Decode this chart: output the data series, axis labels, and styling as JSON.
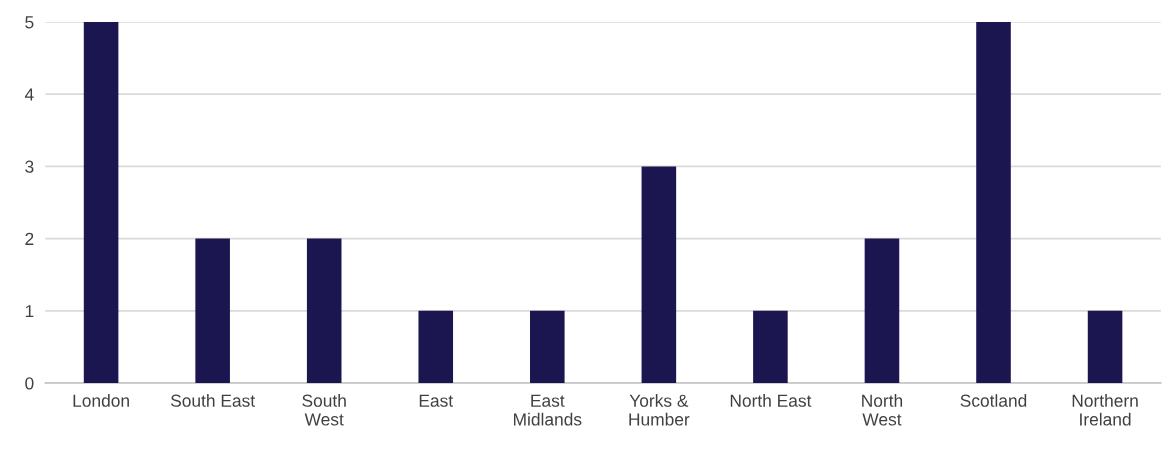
{
  "chart_data": {
    "type": "bar",
    "categories": [
      "London",
      "South East",
      "South\nWest",
      "East",
      "East\nMidlands",
      "Yorks &\nHumber",
      "North East",
      "North\nWest",
      "Scotland",
      "Northern\nIreland"
    ],
    "values": [
      5,
      2,
      2,
      1,
      1,
      3,
      1,
      2,
      5,
      1
    ],
    "color": "#1c1650",
    "ylim": [
      0,
      5
    ],
    "yticks": [
      0,
      1,
      2,
      3,
      4,
      5
    ],
    "grid": "y"
  }
}
